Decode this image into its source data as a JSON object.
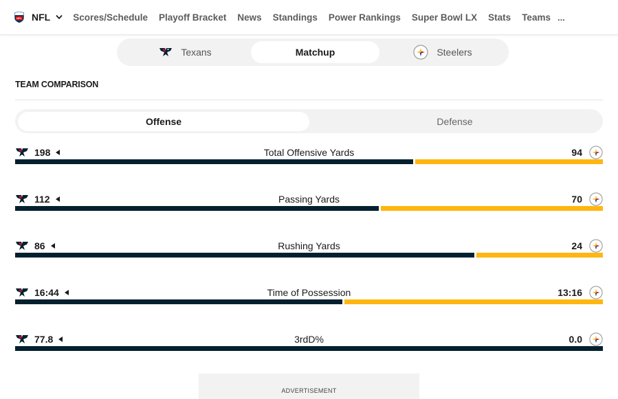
{
  "nav": {
    "league": "NFL",
    "items": [
      "Scores/Schedule",
      "Playoff Bracket",
      "News",
      "Standings",
      "Power Rankings",
      "Super Bowl LX",
      "Stats",
      "Teams"
    ],
    "more": "..."
  },
  "team_toggle": {
    "home": "Texans",
    "matchup": "Matchup",
    "away": "Steelers",
    "selected": "Matchup"
  },
  "section_title": "TEAM COMPARISON",
  "side_toggle": {
    "offense": "Offense",
    "defense": "Defense",
    "selected": "Offense"
  },
  "colors": {
    "home": "#03202f",
    "away": "#ffb612",
    "texans_red": "#c8102e"
  },
  "icons": {
    "league": "nfl-shield-icon",
    "home": "texans-logo-icon",
    "away": "steelers-logo-icon",
    "leader": "caret-left-icon",
    "menu": "chevron-down-icon"
  },
  "stats": [
    {
      "label": "Total Offensive Yards",
      "home": "198",
      "away": "94",
      "home_share": 0.678
    },
    {
      "label": "Passing Yards",
      "home": "112",
      "away": "70",
      "home_share": 0.62
    },
    {
      "label": "Rushing Yards",
      "home": "86",
      "away": "24",
      "home_share": 0.782
    },
    {
      "label": "Time of Possession",
      "home": "16:44",
      "away": "13:16",
      "home_share": 0.558
    },
    {
      "label": "3rdD%",
      "home": "77.8",
      "away": "0.0",
      "home_share": 1.0
    }
  ],
  "ad": {
    "label": "ADVERTISEMENT"
  }
}
